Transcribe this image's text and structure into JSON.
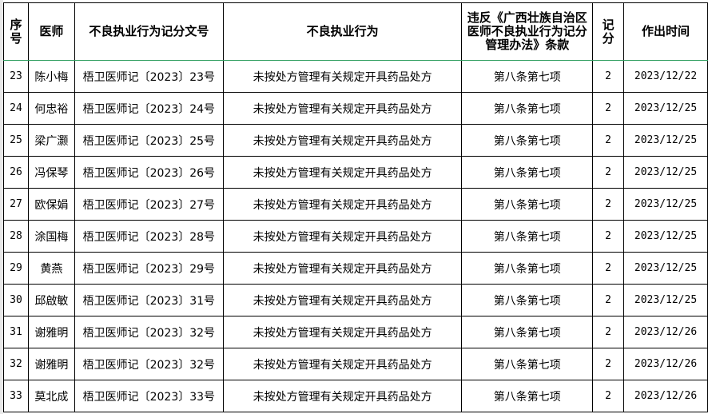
{
  "headers": [
    "序号",
    "医师",
    "不良执业行为记分文号",
    "不良执业行为",
    "违反《广西壮族自治区医师不良执业行为记分管理办法》条款",
    "记分",
    "作出时间"
  ],
  "rows": [
    {
      "no": "23",
      "doctor": "陈小梅",
      "doc_no": "梧卫医师记〔2023〕23号",
      "behavior": "未按处方管理有关规定开具药品处方",
      "clause": "第八条第七项",
      "score": "2",
      "date": "2023/12/22"
    },
    {
      "no": "24",
      "doctor": "何忠裕",
      "doc_no": "梧卫医师记〔2023〕24号",
      "behavior": "未按处方管理有关规定开具药品处方",
      "clause": "第八条第七项",
      "score": "2",
      "date": "2023/12/25"
    },
    {
      "no": "25",
      "doctor": "梁广灏",
      "doc_no": "梧卫医师记〔2023〕25号",
      "behavior": "未按处方管理有关规定开具药品处方",
      "clause": "第八条第七项",
      "score": "2",
      "date": "2023/12/25"
    },
    {
      "no": "26",
      "doctor": "冯保琴",
      "doc_no": "梧卫医师记〔2023〕26号",
      "behavior": "未按处方管理有关规定开具药品处方",
      "clause": "第八条第七项",
      "score": "2",
      "date": "2023/12/25"
    },
    {
      "no": "27",
      "doctor": "欧保娟",
      "doc_no": "梧卫医师记〔2023〕27号",
      "behavior": "未按处方管理有关规定开具药品处方",
      "clause": "第八条第七项",
      "score": "2",
      "date": "2023/12/25"
    },
    {
      "no": "28",
      "doctor": "涂国梅",
      "doc_no": "梧卫医师记〔2023〕28号",
      "behavior": "未按处方管理有关规定开具药品处方",
      "clause": "第八条第七项",
      "score": "2",
      "date": "2023/12/25"
    },
    {
      "no": "29",
      "doctor": "黄燕",
      "doc_no": "梧卫医师记〔2023〕29号",
      "behavior": "未按处方管理有关规定开具药品处方",
      "clause": "第八条第七项",
      "score": "2",
      "date": "2023/12/25"
    },
    {
      "no": "30",
      "doctor": "邱啟敏",
      "doc_no": "梧卫医师记〔2023〕31号",
      "behavior": "未按处方管理有关规定开具药品处方",
      "clause": "第八条第七项",
      "score": "2",
      "date": "2023/12/25"
    },
    {
      "no": "31",
      "doctor": "谢雅明",
      "doc_no": "梧卫医师记〔2023〕32号",
      "behavior": "未按处方管理有关规定开具药品处方",
      "clause": "第八条第七项",
      "score": "2",
      "date": "2023/12/26"
    },
    {
      "no": "32",
      "doctor": "谢雅明",
      "doc_no": "梧卫医师记〔2023〕32号",
      "behavior": "未按处方管理有关规定开具药品处方",
      "clause": "第八条第七项",
      "score": "2",
      "date": "2023/12/26"
    },
    {
      "no": "33",
      "doctor": "莫北成",
      "doc_no": "梧卫医师记〔2023〕33号",
      "behavior": "未按处方管理有关规定开具药品处方",
      "clause": "第八条第七项",
      "score": "2",
      "date": "2023/12/26"
    }
  ]
}
